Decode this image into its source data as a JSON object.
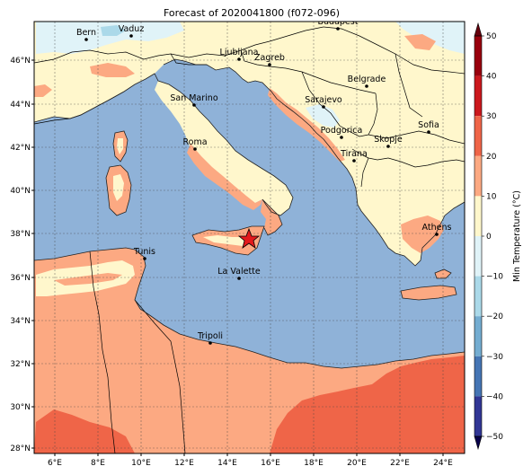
{
  "title": "Forecast of 2020041800 (f072-096)",
  "colorbar": {
    "label": "Min Temperature (°C)",
    "ticks": [
      "50",
      "40",
      "30",
      "20",
      "10",
      "0",
      "−10",
      "−20",
      "−30",
      "−40",
      "−50"
    ],
    "bands": [
      {
        "from": 40,
        "to": 50,
        "color": "#99000d"
      },
      {
        "from": 30,
        "to": 40,
        "color": "#cb181d"
      },
      {
        "from": 20,
        "to": 30,
        "color": "#ef6548"
      },
      {
        "from": 10,
        "to": 20,
        "color": "#fca982"
      },
      {
        "from": 0,
        "to": 10,
        "color": "#fff7cc"
      },
      {
        "from": -10,
        "to": 0,
        "color": "#e0f3f8"
      },
      {
        "from": -20,
        "to": -10,
        "color": "#abd9e9"
      },
      {
        "from": -30,
        "to": -20,
        "color": "#74add1"
      },
      {
        "from": -40,
        "to": -30,
        "color": "#4575b4"
      },
      {
        "from": -50,
        "to": -40,
        "color": "#313695"
      }
    ]
  },
  "axes": {
    "lat_ticks": [
      "46°N",
      "44°N",
      "42°N",
      "40°N",
      "38°N",
      "36°N",
      "34°N",
      "32°N",
      "30°N",
      "28°N"
    ],
    "lon_ticks": [
      "6°E",
      "8°E",
      "10°E",
      "12°E",
      "14°E",
      "16°E",
      "18°E",
      "20°E",
      "22°E",
      "24°E"
    ]
  },
  "cities": [
    {
      "name": "Bern"
    },
    {
      "name": "Vaduz"
    },
    {
      "name": "Budapest"
    },
    {
      "name": "Ljubljana"
    },
    {
      "name": "Zagreb"
    },
    {
      "name": "Belgrade"
    },
    {
      "name": "San Marino"
    },
    {
      "name": "Sarajevo"
    },
    {
      "name": "Sofia"
    },
    {
      "name": "Podgorica"
    },
    {
      "name": "Skopje"
    },
    {
      "name": "Roma"
    },
    {
      "name": "Tirana"
    },
    {
      "name": "Athens"
    },
    {
      "name": "Tunis"
    },
    {
      "name": "La Valette"
    },
    {
      "name": "Tripoli"
    }
  ],
  "marker": {
    "type": "star-icon",
    "color": "#e31a1c"
  },
  "colors": {
    "sea": "#8fb2d8",
    "land_cool": "#fff7cc",
    "land_mild": "#fca982",
    "land_warm": "#ef6548",
    "coast_cold": "#e0f3f8"
  }
}
